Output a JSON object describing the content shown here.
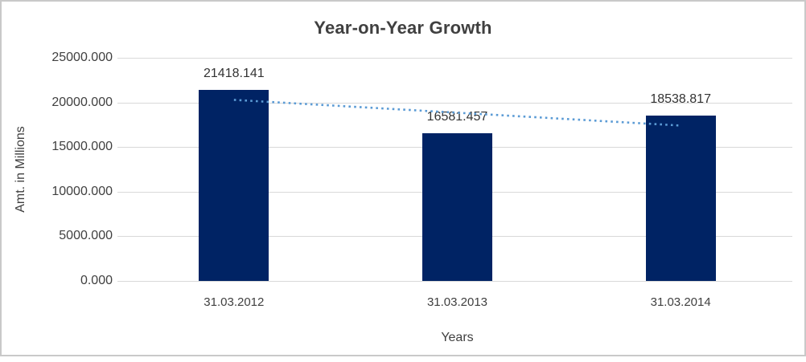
{
  "window": {
    "background": "#ffffff",
    "frame_border_color": "#c9c9c9"
  },
  "chart_data": {
    "type": "bar",
    "title": "Year-on-Year Growth",
    "xlabel": "Years",
    "ylabel": "Amt. in Millions",
    "categories": [
      "31.03.2012",
      "31.03.2013",
      "31.03.2014"
    ],
    "values": [
      21418.141,
      16581.457,
      18538.817
    ],
    "data_labels": [
      "21418.141",
      "16581.457",
      "18538.817"
    ],
    "y_tick_labels": [
      "25000.000",
      "20000.000",
      "15000.000",
      "10000.000",
      "5000.000",
      "0.000"
    ],
    "y_tick_values": [
      25000,
      20000,
      15000,
      10000,
      5000,
      0
    ],
    "ylim": [
      0,
      25000
    ],
    "grid": "horizontal",
    "legend_position": "none",
    "bar_color": "#002364",
    "gridline_color": "#d9d9d9",
    "trendline": {
      "type": "linear",
      "style": "dotted",
      "color": "#5b9bd5",
      "start_value": 20285.8,
      "end_value": 17406.4
    }
  }
}
